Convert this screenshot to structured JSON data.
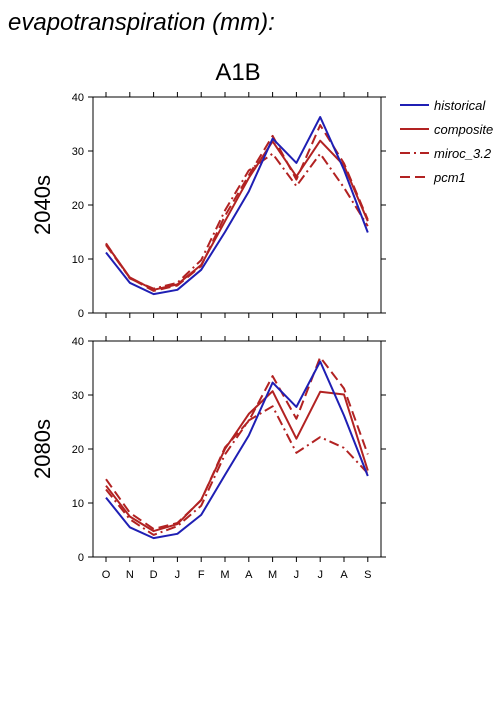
{
  "figure": {
    "title": "evapotranspiration (mm):",
    "scenario": "A1B"
  },
  "legend": {
    "placement": "right",
    "entries": [
      {
        "name": "historical",
        "color": "#1f1fb4",
        "dash": "solid"
      },
      {
        "name": "composite",
        "color": "#b22222",
        "dash": "solid"
      },
      {
        "name": "miroc_3.2",
        "color": "#b22222",
        "dash": "dashdot"
      },
      {
        "name": "pcm1",
        "color": "#b22222",
        "dash": "dashed"
      }
    ]
  },
  "chart_data": [
    {
      "type": "line",
      "title": "",
      "panel_label": "2040s",
      "categories": [
        "O",
        "N",
        "D",
        "J",
        "F",
        "M",
        "A",
        "M",
        "J",
        "J",
        "A",
        "S"
      ],
      "ylim": [
        0,
        40
      ],
      "yticks": [
        0,
        10,
        20,
        30,
        40
      ],
      "grid": false,
      "series": [
        {
          "name": "historical",
          "values": [
            11.2,
            5.6,
            3.5,
            4.3,
            8.0,
            15.0,
            22.5,
            32.3,
            27.8,
            36.3,
            26.5,
            14.9
          ]
        },
        {
          "name": "composite",
          "values": [
            12.8,
            6.6,
            4.3,
            5.3,
            8.9,
            17.0,
            25.0,
            31.8,
            25.3,
            31.9,
            27.3,
            17.0
          ]
        },
        {
          "name": "miroc_3.2",
          "values": [
            12.9,
            6.4,
            4.5,
            5.6,
            9.8,
            19.0,
            26.4,
            29.5,
            23.5,
            29.5,
            23.2,
            16.1
          ]
        },
        {
          "name": "pcm1",
          "values": [
            12.6,
            6.5,
            4.1,
            5.1,
            8.7,
            18.0,
            25.5,
            32.8,
            24.7,
            34.8,
            27.7,
            17.3
          ]
        }
      ]
    },
    {
      "type": "line",
      "title": "",
      "panel_label": "2080s",
      "categories": [
        "O",
        "N",
        "D",
        "J",
        "F",
        "M",
        "A",
        "M",
        "J",
        "J",
        "A",
        "S"
      ],
      "ylim": [
        0,
        40
      ],
      "yticks": [
        0,
        10,
        20,
        30,
        40
      ],
      "grid": false,
      "series": [
        {
          "name": "historical",
          "values": [
            11.0,
            5.5,
            3.5,
            4.3,
            7.8,
            15.2,
            22.5,
            32.3,
            27.8,
            36.2,
            26.2,
            15.0
          ]
        },
        {
          "name": "composite",
          "values": [
            13.2,
            7.5,
            4.8,
            6.1,
            10.6,
            20.0,
            26.5,
            30.7,
            21.9,
            30.6,
            30.1,
            16.0
          ]
        },
        {
          "name": "miroc_3.2",
          "values": [
            12.5,
            7.0,
            4.1,
            5.7,
            9.5,
            19.0,
            25.3,
            27.9,
            19.3,
            22.2,
            20.2,
            15.5
          ]
        },
        {
          "name": "pcm1",
          "values": [
            14.4,
            8.2,
            5.2,
            6.3,
            10.5,
            20.3,
            25.2,
            33.5,
            25.6,
            37.0,
            31.2,
            19.0
          ]
        }
      ]
    }
  ]
}
